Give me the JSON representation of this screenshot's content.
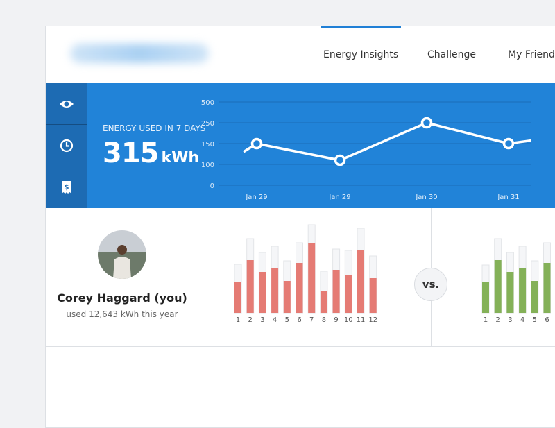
{
  "nav": {
    "tabs": [
      {
        "label": "Energy Insights",
        "active": true
      },
      {
        "label": "Challenge"
      },
      {
        "label": "My Friends"
      }
    ]
  },
  "sidebar": {
    "items": [
      {
        "icon": "eye-icon"
      },
      {
        "icon": "clock-icon"
      },
      {
        "icon": "bill-icon"
      }
    ]
  },
  "energy": {
    "label": "ENERGY USED IN 7 DAYS",
    "value": "315",
    "unit": "kWh"
  },
  "chart_data": {
    "type": "line",
    "y_ticks": [
      0,
      100,
      150,
      250,
      500
    ],
    "y_scale": "tick-spaced (non-linear)",
    "grid": true,
    "categories": [
      "Jan 29",
      "Jan 29",
      "Jan 30",
      "Jan 31"
    ],
    "values": [
      150,
      110,
      250,
      150
    ],
    "color": "#ffffff"
  },
  "user": {
    "name": "Corey Haggard (you)",
    "usage": "used 12,643 kWh this year"
  },
  "vs_label": "vs.",
  "my_bars": {
    "color": "#e57b74",
    "months": [
      "1",
      "2",
      "3",
      "4",
      "5",
      "6",
      "7",
      "8",
      "9",
      "10",
      "11",
      "12"
    ],
    "used": [
      44,
      76,
      59,
      64,
      46,
      72,
      100,
      32,
      62,
      54,
      91,
      50
    ],
    "total": [
      70,
      107,
      87,
      96,
      75,
      101,
      127,
      60,
      92,
      90,
      122,
      82
    ]
  },
  "friend_bars": {
    "color": "#84b158",
    "months": [
      "1",
      "2",
      "3",
      "4",
      "5",
      "6"
    ],
    "used": [
      44,
      76,
      59,
      64,
      46,
      72
    ],
    "total": [
      69,
      107,
      87,
      96,
      75,
      101
    ]
  }
}
